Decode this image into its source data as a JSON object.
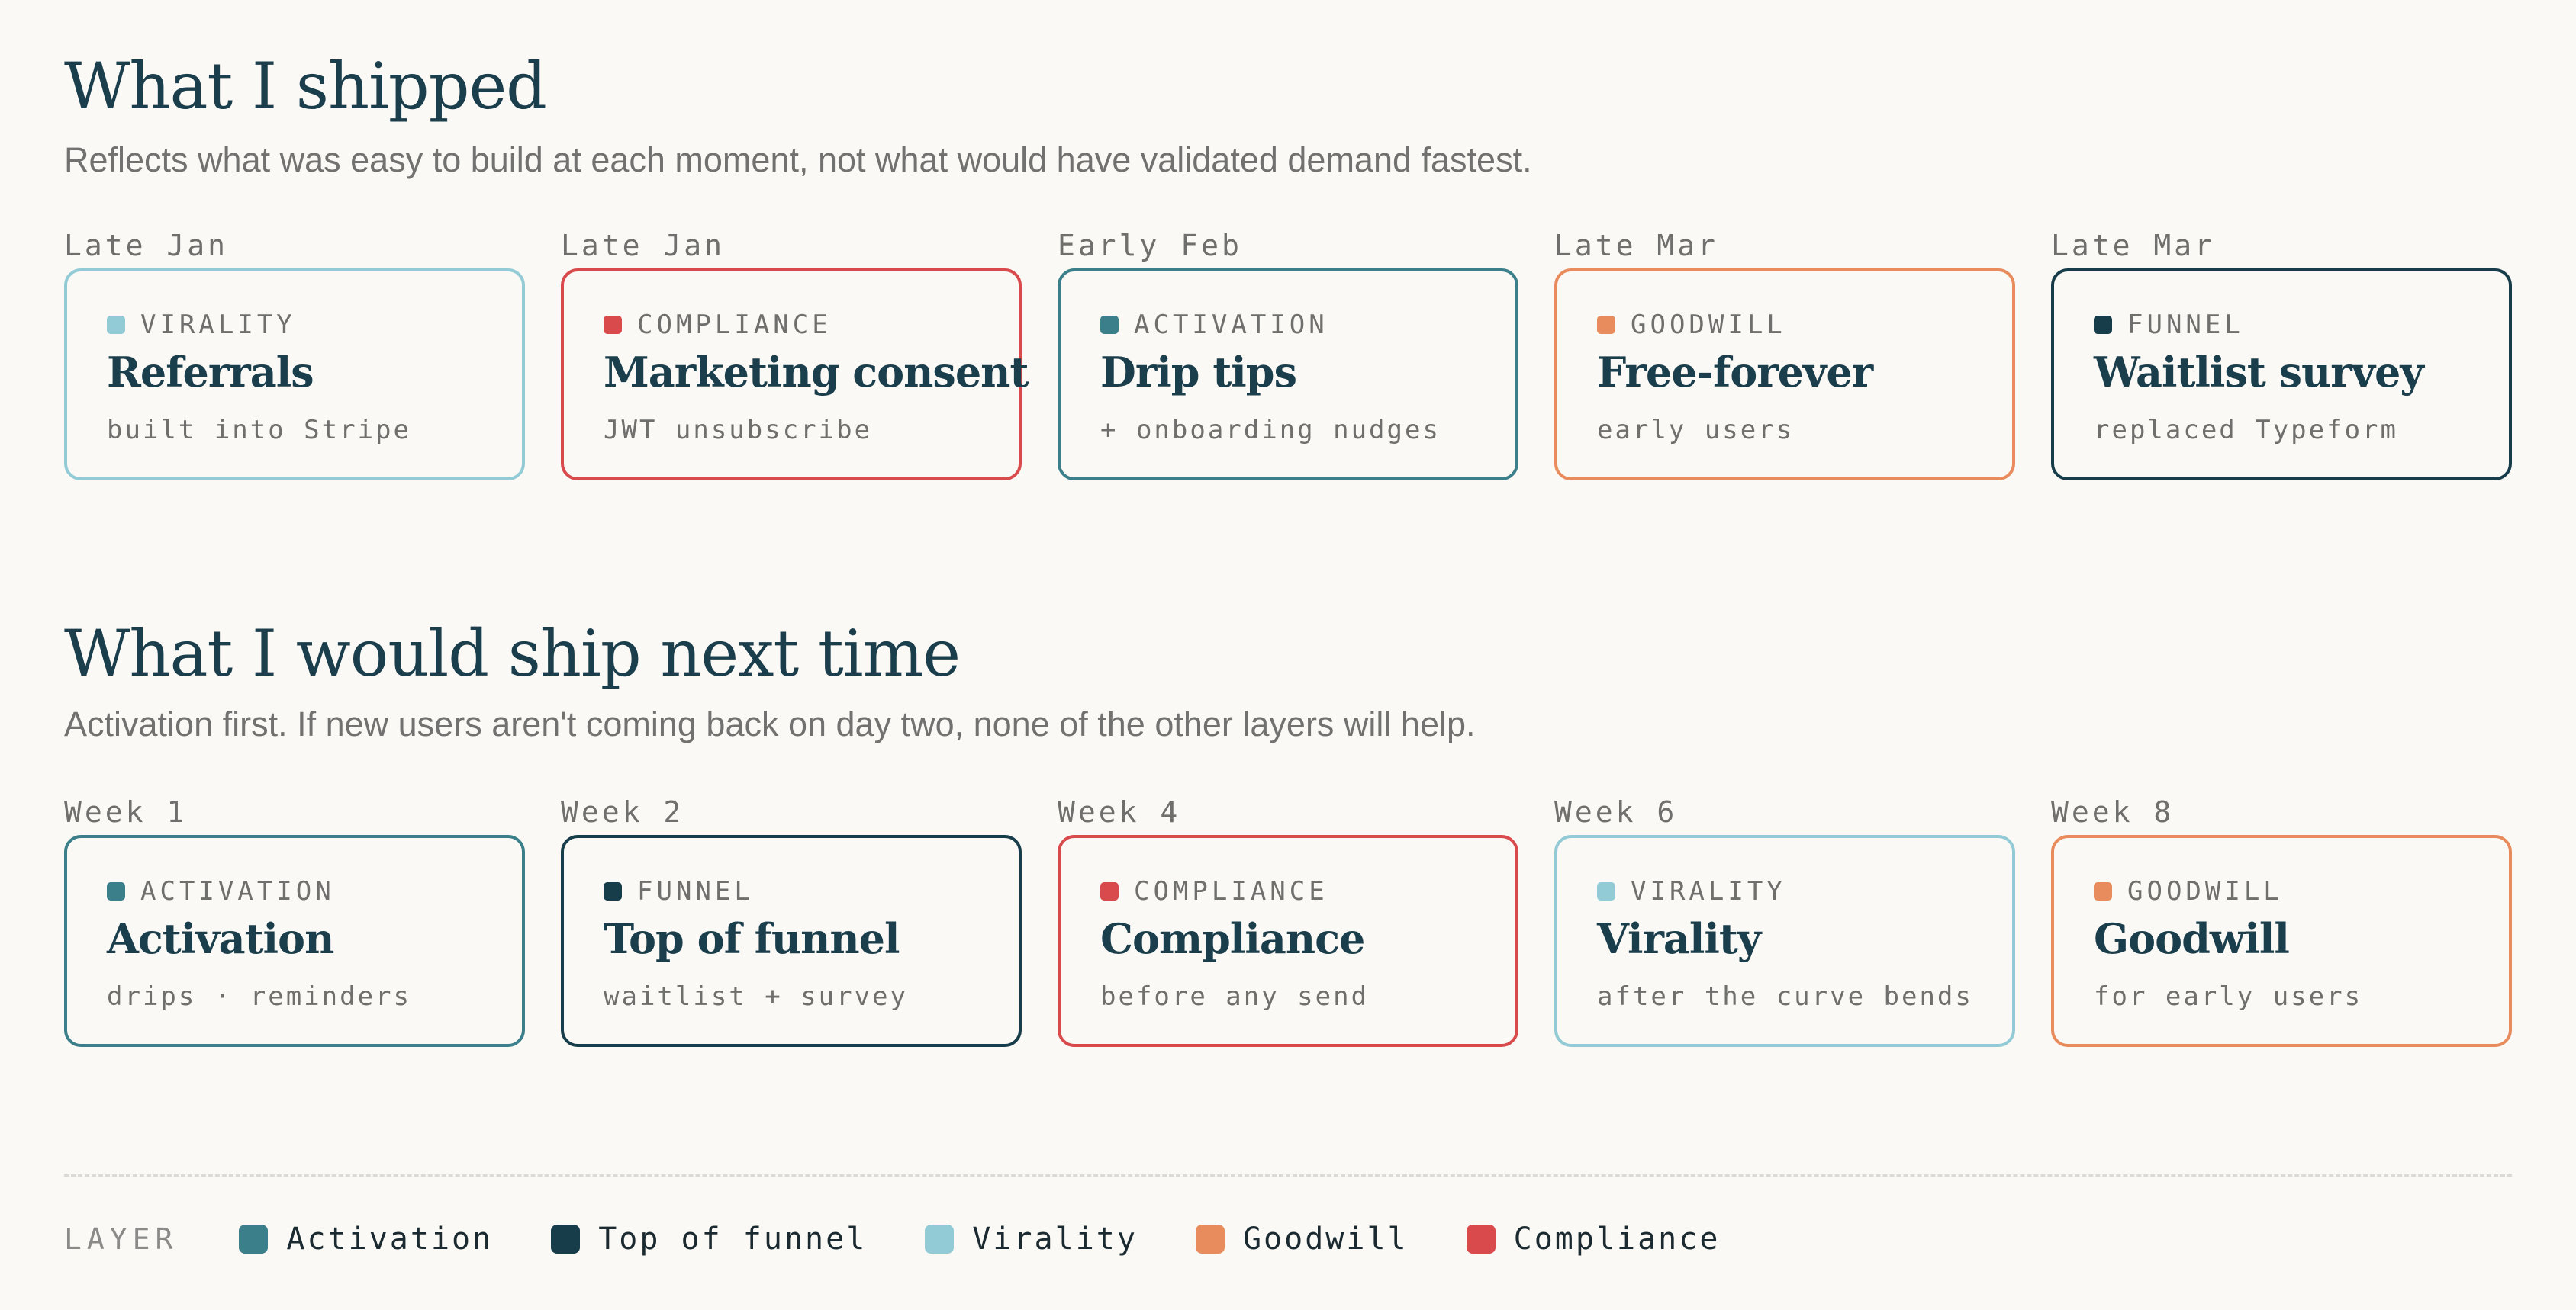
{
  "colors": {
    "activation": "#3b7f8a",
    "funnel": "#173d4b",
    "virality": "#92cbd6",
    "goodwill": "#e88c5d",
    "compliance": "#d94a4c"
  },
  "shipped": {
    "title": "What I shipped",
    "subtitle": "Reflects what was easy to build at each moment, not what would have validated demand fastest.",
    "cards": [
      {
        "when": "Late Jan",
        "tag": "VIRALITY",
        "layer": "virality",
        "title": "Referrals",
        "note": "built into Stripe"
      },
      {
        "when": "Late Jan",
        "tag": "COMPLIANCE",
        "layer": "compliance",
        "title": "Marketing consent",
        "note": "JWT unsubscribe"
      },
      {
        "when": "Early Feb",
        "tag": "ACTIVATION",
        "layer": "activation",
        "title": "Drip tips",
        "note": "+ onboarding nudges"
      },
      {
        "when": "Late Mar",
        "tag": "GOODWILL",
        "layer": "goodwill",
        "title": "Free-forever",
        "note": "early users"
      },
      {
        "when": "Late Mar",
        "tag": "FUNNEL",
        "layer": "funnel",
        "title": "Waitlist survey",
        "note": "replaced Typeform"
      }
    ]
  },
  "next": {
    "title": "What I would ship next time",
    "subtitle": "Activation first. If new users aren't coming back on day two, none of the other layers will help.",
    "cards": [
      {
        "when": "Week 1",
        "tag": "ACTIVATION",
        "layer": "activation",
        "title": "Activation",
        "note": "drips · reminders"
      },
      {
        "when": "Week 2",
        "tag": "FUNNEL",
        "layer": "funnel",
        "title": "Top of funnel",
        "note": "waitlist + survey"
      },
      {
        "when": "Week 4",
        "tag": "COMPLIANCE",
        "layer": "compliance",
        "title": "Compliance",
        "note": "before any send"
      },
      {
        "when": "Week 6",
        "tag": "VIRALITY",
        "layer": "virality",
        "title": "Virality",
        "note": "after the curve bends"
      },
      {
        "when": "Week 8",
        "tag": "GOODWILL",
        "layer": "goodwill",
        "title": "Goodwill",
        "note": "for early users"
      }
    ]
  },
  "legend": {
    "title": "LAYER",
    "items": [
      {
        "label": "Activation",
        "layer": "activation"
      },
      {
        "label": "Top of funnel",
        "layer": "funnel"
      },
      {
        "label": "Virality",
        "layer": "virality"
      },
      {
        "label": "Goodwill",
        "layer": "goodwill"
      },
      {
        "label": "Compliance",
        "layer": "compliance"
      }
    ]
  }
}
